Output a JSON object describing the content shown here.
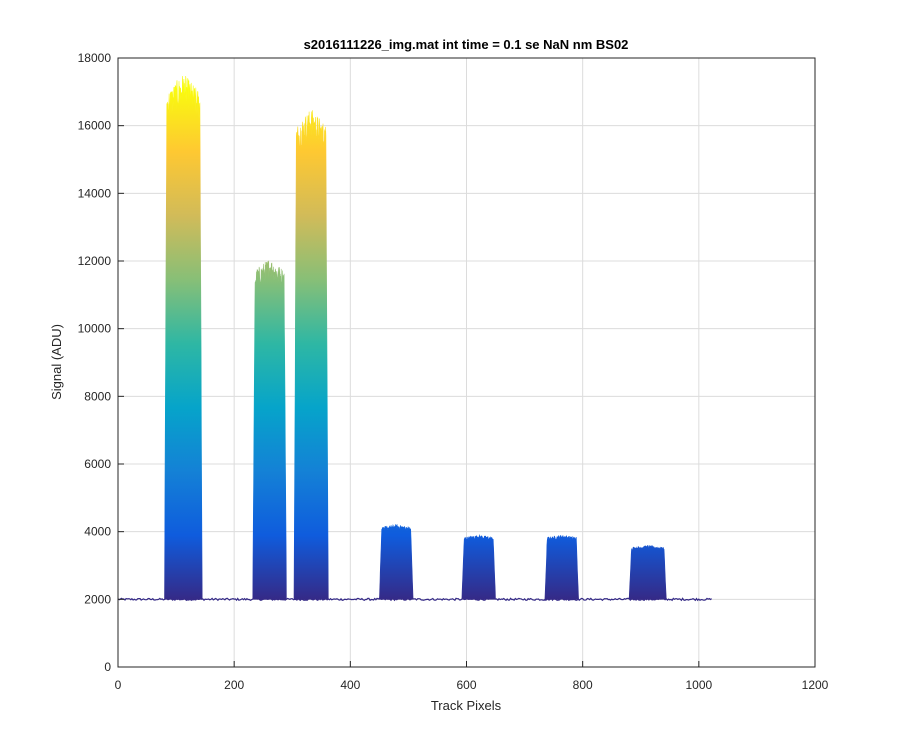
{
  "chart_data": {
    "type": "area",
    "title": "s2016111226_img.mat int time = 0.1 se  NaN nm BS02",
    "xlabel": "Track Pixels",
    "ylabel": "Signal (ADU)",
    "xlim": [
      0,
      1200
    ],
    "ylim": [
      0,
      18000
    ],
    "xticks": [
      0,
      200,
      400,
      600,
      800,
      1000,
      1200
    ],
    "yticks": [
      0,
      2000,
      4000,
      6000,
      8000,
      10000,
      12000,
      14000,
      16000,
      18000
    ],
    "xtick_labels": [
      "0",
      "200",
      "400",
      "600",
      "800",
      "1000",
      "1200"
    ],
    "ytick_labels": [
      "0",
      "2000",
      "4000",
      "6000",
      "8000",
      "10000",
      "12000",
      "14000",
      "16000",
      "18000"
    ],
    "grid": true,
    "colormap": [
      "#352a87",
      "#0f5cdd",
      "#1481d6",
      "#06a4ca",
      "#2eb7a4",
      "#87bf77",
      "#d1bb59",
      "#fec832",
      "#f9fb0e"
    ],
    "baseline": 2000,
    "x_range": [
      0,
      1023
    ],
    "peaks": [
      {
        "start": 80,
        "end": 145,
        "peak": 17100
      },
      {
        "start": 232,
        "end": 290,
        "peak": 11800
      },
      {
        "start": 303,
        "end": 362,
        "peak": 16100
      },
      {
        "start": 450,
        "end": 508,
        "peak": 4150
      },
      {
        "start": 592,
        "end": 650,
        "peak": 3850
      },
      {
        "start": 735,
        "end": 793,
        "peak": 3850
      },
      {
        "start": 880,
        "end": 944,
        "peak": 3550
      }
    ]
  }
}
